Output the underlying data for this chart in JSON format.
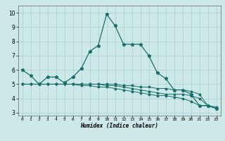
{
  "title": "",
  "xlabel": "Humidex (Indice chaleur)",
  "ylabel": "",
  "background_color": "#cce8e8",
  "grid_color": "#aacece",
  "line_color": "#1a6e6a",
  "xlim": [
    -0.5,
    23.5
  ],
  "ylim": [
    2.8,
    10.5
  ],
  "yticks": [
    3,
    4,
    5,
    6,
    7,
    8,
    9,
    10
  ],
  "xticks": [
    0,
    1,
    2,
    3,
    4,
    5,
    6,
    7,
    8,
    9,
    10,
    11,
    12,
    13,
    14,
    15,
    16,
    17,
    18,
    19,
    20,
    21,
    22,
    23
  ],
  "line1_x": [
    0,
    1,
    2,
    3,
    4,
    5,
    6,
    7,
    8,
    9,
    10,
    11,
    12,
    13,
    14,
    15,
    16,
    17,
    18,
    19,
    20,
    21,
    22,
    23
  ],
  "line1_y": [
    6.0,
    5.6,
    5.0,
    5.5,
    5.5,
    5.1,
    5.5,
    6.1,
    7.3,
    7.7,
    9.9,
    9.1,
    7.8,
    7.8,
    7.8,
    7.0,
    5.8,
    5.4,
    4.6,
    4.6,
    4.3,
    3.5,
    3.5,
    3.3
  ],
  "line2_x": [
    0,
    1,
    2,
    3,
    4,
    5,
    6,
    7,
    8,
    9,
    10,
    11,
    12,
    13,
    14,
    15,
    16,
    17,
    18,
    19,
    20,
    21,
    22,
    23
  ],
  "line2_y": [
    5.0,
    5.0,
    5.0,
    5.0,
    5.0,
    5.0,
    5.0,
    5.0,
    5.0,
    5.0,
    5.0,
    5.0,
    4.9,
    4.9,
    4.8,
    4.8,
    4.7,
    4.7,
    4.6,
    4.6,
    4.5,
    4.3,
    3.5,
    3.3
  ],
  "line3_x": [
    0,
    1,
    2,
    3,
    4,
    5,
    6,
    7,
    8,
    9,
    10,
    11,
    12,
    13,
    14,
    15,
    16,
    17,
    18,
    19,
    20,
    21,
    22,
    23
  ],
  "line3_y": [
    5.0,
    5.0,
    5.0,
    5.0,
    5.0,
    5.0,
    5.0,
    5.0,
    5.0,
    5.0,
    4.9,
    4.9,
    4.8,
    4.7,
    4.6,
    4.5,
    4.4,
    4.3,
    4.3,
    4.3,
    4.2,
    4.0,
    3.5,
    3.4
  ],
  "line4_x": [
    0,
    1,
    2,
    3,
    4,
    5,
    6,
    7,
    8,
    9,
    10,
    11,
    12,
    13,
    14,
    15,
    16,
    17,
    18,
    19,
    20,
    21,
    22,
    23
  ],
  "line4_y": [
    5.0,
    5.0,
    5.0,
    5.0,
    5.0,
    5.0,
    5.0,
    4.9,
    4.9,
    4.8,
    4.8,
    4.7,
    4.6,
    4.5,
    4.4,
    4.3,
    4.2,
    4.2,
    4.1,
    4.0,
    3.8,
    3.5,
    3.5,
    3.3
  ]
}
